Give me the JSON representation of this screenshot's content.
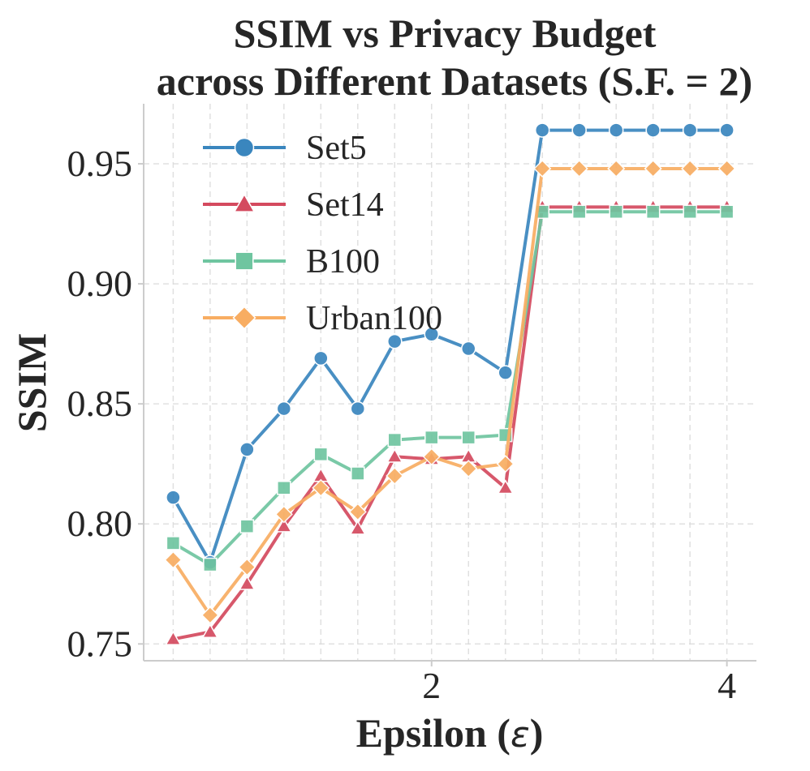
{
  "chart_data": {
    "type": "line",
    "title": "SSIM vs Privacy Budget",
    "title_line2": "across Different Datasets (S.F. = 2)",
    "xlabel_main": "Epsilon (",
    "xlabel_symbol": "ε",
    "xlabel_end": ")",
    "ylabel": "SSIM",
    "xlim": [
      0.05,
      4.2
    ],
    "ylim": [
      0.743,
      0.975
    ],
    "xticks": [
      2,
      4
    ],
    "xtick_labels": [
      "2",
      "4"
    ],
    "yticks": [
      0.75,
      0.8,
      0.85,
      0.9,
      0.95
    ],
    "ytick_labels": [
      "0.75",
      "0.80",
      "0.85",
      "0.90",
      "0.95"
    ],
    "grid": true,
    "legend_position": "upper-left",
    "x": [
      0.25,
      0.5,
      0.75,
      1.0,
      1.25,
      1.5,
      1.75,
      2.0,
      2.25,
      2.5,
      2.75,
      3.0,
      3.25,
      3.5,
      3.75,
      4.0
    ],
    "series": [
      {
        "name": "Set5",
        "color": "#3a86be",
        "marker": "circle",
        "values": [
          0.811,
          0.784,
          0.831,
          0.848,
          0.869,
          0.848,
          0.876,
          0.879,
          0.873,
          0.863,
          0.964,
          0.964,
          0.964,
          0.964,
          0.964,
          0.964
        ]
      },
      {
        "name": "Set14",
        "color": "#d44a5f",
        "marker": "triangle",
        "values": [
          0.752,
          0.755,
          0.775,
          0.799,
          0.82,
          0.798,
          0.828,
          0.827,
          0.828,
          0.815,
          0.932,
          0.932,
          0.932,
          0.932,
          0.932,
          0.932
        ]
      },
      {
        "name": "B100",
        "color": "#6fc5a0",
        "marker": "square",
        "values": [
          0.792,
          0.783,
          0.799,
          0.815,
          0.829,
          0.821,
          0.835,
          0.836,
          0.836,
          0.837,
          0.93,
          0.93,
          0.93,
          0.93,
          0.93,
          0.93
        ]
      },
      {
        "name": "Urban100",
        "color": "#f8ad62",
        "marker": "diamond",
        "values": [
          0.785,
          0.762,
          0.782,
          0.804,
          0.815,
          0.805,
          0.82,
          0.828,
          0.823,
          0.825,
          0.948,
          0.948,
          0.948,
          0.948,
          0.948,
          0.948
        ]
      }
    ]
  }
}
